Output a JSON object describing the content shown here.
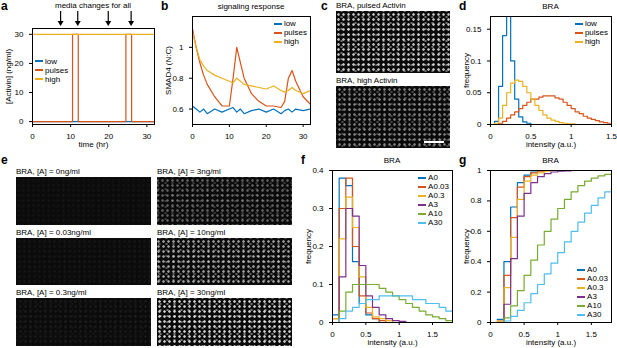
{
  "chart_data": [
    {
      "panel": "a",
      "type": "line",
      "line_style": "step",
      "annotations": [
        "media changes for all"
      ],
      "media_changes": [
        7.5,
        12,
        20,
        26
      ],
      "xlabel": "time (hr)",
      "ylabel": "[Activin] (ng/ml)",
      "x": [
        0,
        10.5,
        12,
        24.5,
        26,
        32
      ],
      "series": [
        {
          "name": "low",
          "color": "#0072BD",
          "values": [
            0,
            0,
            0,
            0,
            0,
            0
          ]
        },
        {
          "name": "pulses",
          "color": "#D95319",
          "values": [
            0,
            30,
            0,
            30,
            0,
            0
          ]
        },
        {
          "name": "high",
          "color": "#EDB120",
          "values": [
            30,
            30,
            30,
            30,
            30,
            30
          ]
        }
      ],
      "xlim": [
        0,
        32
      ],
      "xticks": [
        0,
        10,
        20,
        30
      ],
      "ylim": [
        -1,
        32
      ],
      "yticks": [
        0,
        10,
        20,
        30
      ],
      "legend": "west"
    },
    {
      "panel": "b",
      "type": "line",
      "title": "signaling response",
      "ylabel": "SMAD4 (N:C)",
      "x": [
        0,
        1,
        2,
        3,
        4,
        6,
        8,
        10,
        11,
        12,
        13,
        14,
        16,
        18,
        20,
        22,
        24,
        25,
        26,
        27,
        28,
        30,
        32
      ],
      "series": [
        {
          "name": "low",
          "color": "#0072BD",
          "values": [
            0.62,
            0.6,
            0.58,
            0.6,
            0.57,
            0.6,
            0.58,
            0.6,
            0.61,
            0.58,
            0.6,
            0.57,
            0.59,
            0.6,
            0.58,
            0.6,
            0.57,
            0.59,
            0.6,
            0.58,
            0.6,
            0.59,
            0.6
          ]
        },
        {
          "name": "pulses",
          "color": "#D95319",
          "values": [
            1.12,
            1.0,
            0.9,
            0.82,
            0.76,
            0.68,
            0.62,
            0.62,
            0.8,
            1.0,
            0.9,
            0.8,
            0.7,
            0.65,
            0.62,
            0.62,
            0.61,
            0.65,
            0.8,
            0.85,
            0.78,
            0.68,
            0.63
          ]
        },
        {
          "name": "high",
          "color": "#EDB120",
          "values": [
            1.1,
            1.0,
            0.92,
            0.88,
            0.85,
            0.82,
            0.8,
            0.78,
            0.77,
            0.8,
            0.78,
            0.76,
            0.75,
            0.74,
            0.73,
            0.75,
            0.72,
            0.71,
            0.72,
            0.74,
            0.72,
            0.7,
            0.72
          ]
        }
      ],
      "xlim": [
        0,
        32
      ],
      "xticks": [
        0,
        10,
        20,
        30
      ],
      "ylim": [
        0.5,
        1.2
      ],
      "yticks": [
        0.6,
        0.8,
        1
      ],
      "legend": "northeast"
    },
    {
      "panel": "d",
      "type": "histogram",
      "title": "BRA",
      "xlabel": "intensity (a.u.)",
      "ylabel": "frequency",
      "bins": [
        0,
        0.05,
        0.1,
        0.15,
        0.2,
        0.25,
        0.3,
        0.35,
        0.4,
        0.45,
        0.5,
        0.55,
        0.6,
        0.65,
        0.7,
        0.75,
        0.8,
        0.85,
        0.9,
        0.95,
        1,
        1.05,
        1.1,
        1.15,
        1.2,
        1.25,
        1.3,
        1.35,
        1.4,
        1.45,
        1.5
      ],
      "series": [
        {
          "name": "low",
          "color": "#0072BD",
          "values": [
            0,
            0.005,
            0.06,
            0.14,
            0.17,
            0.1,
            0.04,
            0.012,
            0.004,
            0.002,
            0,
            0,
            0,
            0,
            0,
            0,
            0,
            0,
            0,
            0,
            0,
            0,
            0,
            0,
            0,
            0,
            0,
            0,
            0,
            0
          ]
        },
        {
          "name": "pulses",
          "color": "#D95319",
          "values": [
            0,
            0,
            0.002,
            0.005,
            0.01,
            0.015,
            0.02,
            0.025,
            0.03,
            0.035,
            0.04,
            0.04,
            0.043,
            0.045,
            0.045,
            0.045,
            0.042,
            0.04,
            0.035,
            0.03,
            0.025,
            0.02,
            0.017,
            0.013,
            0.01,
            0.008,
            0.006,
            0.004,
            0.003,
            0.002
          ]
        },
        {
          "name": "high",
          "color": "#EDB120",
          "values": [
            0,
            0.002,
            0.01,
            0.03,
            0.05,
            0.065,
            0.07,
            0.068,
            0.06,
            0.05,
            0.04,
            0.03,
            0.022,
            0.015,
            0.01,
            0.007,
            0.005,
            0.003,
            0.002,
            0.001,
            0.001,
            0,
            0,
            0,
            0,
            0,
            0,
            0,
            0,
            0
          ]
        }
      ],
      "xlim": [
        0,
        1.5
      ],
      "xticks": [
        0,
        0.5,
        1,
        1.5
      ],
      "ylim": [
        0,
        0.17
      ],
      "yticks": [
        0,
        0.05,
        0.1,
        0.15
      ],
      "legend": "northeast"
    },
    {
      "panel": "f",
      "type": "histogram",
      "title": "BRA",
      "xlabel": "intensity (a.u.)",
      "ylabel": "frequency",
      "bins": [
        0,
        0.1,
        0.2,
        0.3,
        0.4,
        0.5,
        0.6,
        0.7,
        0.8,
        0.9,
        1,
        1.1,
        1.2,
        1.3,
        1.4,
        1.5,
        1.6,
        1.7,
        1.8
      ],
      "series": [
        {
          "name": "A0",
          "color": "#0072BD",
          "values": [
            0.02,
            0.38,
            0.36,
            0.16,
            0.05,
            0.02,
            0.01,
            0,
            0,
            0,
            0,
            0,
            0,
            0,
            0,
            0,
            0,
            0
          ]
        },
        {
          "name": "A0.03",
          "color": "#D95319",
          "values": [
            0.01,
            0.3,
            0.38,
            0.2,
            0.07,
            0.025,
            0.01,
            0.005,
            0,
            0,
            0,
            0,
            0,
            0,
            0,
            0,
            0,
            0
          ]
        },
        {
          "name": "A0.3",
          "color": "#EDB120",
          "values": [
            0.01,
            0.22,
            0.33,
            0.25,
            0.12,
            0.04,
            0.015,
            0.01,
            0.005,
            0,
            0,
            0,
            0,
            0,
            0,
            0,
            0,
            0
          ]
        },
        {
          "name": "A3",
          "color": "#7E2F8E",
          "values": [
            0,
            0.12,
            0.3,
            0.28,
            0.15,
            0.07,
            0.04,
            0.02,
            0.01,
            0.005,
            0.003,
            0,
            0,
            0,
            0,
            0,
            0,
            0
          ]
        },
        {
          "name": "A10",
          "color": "#77AC30",
          "values": [
            0,
            0.03,
            0.08,
            0.1,
            0.1,
            0.1,
            0.1,
            0.09,
            0.08,
            0.07,
            0.06,
            0.05,
            0.04,
            0.03,
            0.02,
            0.015,
            0.01,
            0.005
          ]
        },
        {
          "name": "A30",
          "color": "#4DBEEE",
          "values": [
            0,
            0.01,
            0.03,
            0.04,
            0.05,
            0.06,
            0.06,
            0.07,
            0.07,
            0.07,
            0.07,
            0.07,
            0.06,
            0.06,
            0.05,
            0.05,
            0.04,
            0.03
          ]
        }
      ],
      "xlim": [
        0,
        1.8
      ],
      "xticks": [
        0,
        0.5,
        1,
        1.5
      ],
      "ylim": [
        0,
        0.4
      ],
      "yticks": [
        0,
        0.1,
        0.2,
        0.3,
        0.4
      ],
      "legend": "northeast"
    },
    {
      "panel": "g",
      "type": "line",
      "line_style": "step",
      "title": "BRA",
      "xlabel": "intensity (a.u.)",
      "ylabel": "frequency",
      "x": [
        0.1,
        0.2,
        0.3,
        0.4,
        0.5,
        0.6,
        0.7,
        0.8,
        0.9,
        1,
        1.1,
        1.2,
        1.3,
        1.4,
        1.5,
        1.6,
        1.7,
        1.8
      ],
      "series": [
        {
          "name": "A0",
          "color": "#0072BD",
          "values": [
            0.02,
            0.4,
            0.76,
            0.92,
            0.97,
            0.99,
            1,
            1,
            1,
            1,
            1,
            1,
            1,
            1,
            1,
            1,
            1,
            1
          ]
        },
        {
          "name": "A0.03",
          "color": "#D95319",
          "values": [
            0.01,
            0.31,
            0.69,
            0.89,
            0.96,
            0.985,
            0.995,
            1,
            1,
            1,
            1,
            1,
            1,
            1,
            1,
            1,
            1,
            1
          ]
        },
        {
          "name": "A0.3",
          "color": "#EDB120",
          "values": [
            0.01,
            0.23,
            0.56,
            0.81,
            0.93,
            0.97,
            0.985,
            0.995,
            1,
            1,
            1,
            1,
            1,
            1,
            1,
            1,
            1,
            1
          ]
        },
        {
          "name": "A3",
          "color": "#7E2F8E",
          "values": [
            0,
            0.12,
            0.42,
            0.7,
            0.85,
            0.92,
            0.96,
            0.98,
            0.99,
            0.995,
            0.998,
            1,
            1,
            1,
            1,
            1,
            1,
            1
          ]
        },
        {
          "name": "A10",
          "color": "#77AC30",
          "values": [
            0,
            0.03,
            0.11,
            0.21,
            0.31,
            0.41,
            0.51,
            0.6,
            0.68,
            0.75,
            0.81,
            0.86,
            0.9,
            0.93,
            0.95,
            0.965,
            0.975,
            0.98
          ]
        },
        {
          "name": "A30",
          "color": "#4DBEEE",
          "values": [
            0,
            0.01,
            0.04,
            0.08,
            0.13,
            0.19,
            0.25,
            0.32,
            0.39,
            0.46,
            0.53,
            0.6,
            0.66,
            0.72,
            0.77,
            0.82,
            0.86,
            0.89
          ]
        }
      ],
      "xlim": [
        0,
        1.8
      ],
      "xticks": [
        0,
        0.5,
        1,
        1.5
      ],
      "ylim": [
        0,
        1
      ],
      "yticks": [
        0,
        0.2,
        0.4,
        0.6,
        0.8,
        1
      ],
      "legend": "southeast"
    }
  ],
  "image_panels": [
    {
      "panel": "c",
      "images": [
        "BRA, pulsed Activin",
        "BRA, high Activin"
      ]
    },
    {
      "panel": "e",
      "images": [
        "BRA, [A] = 0ng/ml",
        "BRA, [A] = 0.03ng/ml",
        "BRA, [A] = 0.3ng/ml",
        "BRA, [A] = 3ng/ml",
        "BRA, [A] = 10ng/ml",
        "BRA, [A] = 30ng/ml"
      ]
    }
  ]
}
